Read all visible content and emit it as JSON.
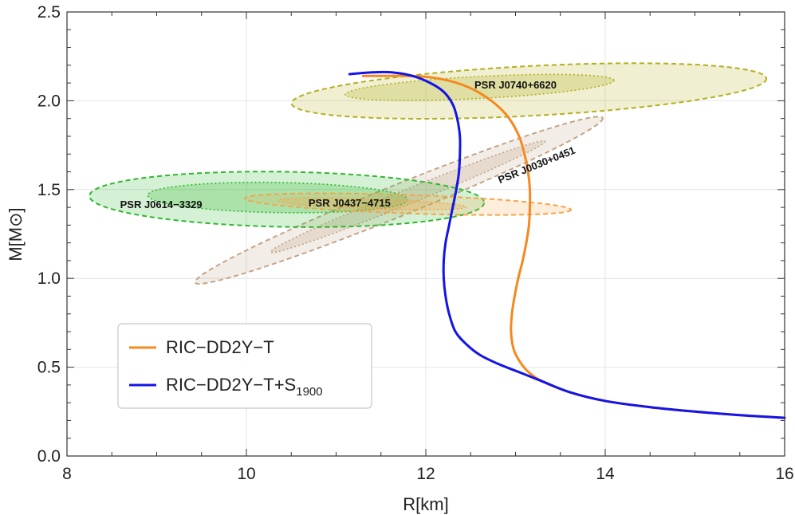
{
  "chart_data": {
    "type": "line",
    "title": "",
    "xlabel": "R[km]",
    "ylabel": "M[M⊙]",
    "xlim": [
      8,
      16
    ],
    "ylim": [
      0,
      2.5
    ],
    "x_ticks": [
      8,
      10,
      12,
      14,
      16
    ],
    "x_tick_labels": [
      "8",
      "10",
      "12",
      "14",
      "16"
    ],
    "y_ticks": [
      0.0,
      0.5,
      1.0,
      1.5,
      2.0,
      2.5
    ],
    "y_tick_labels": [
      "0.0",
      "0.5",
      "1.0",
      "1.5",
      "2.0",
      "2.5"
    ],
    "grid": true,
    "legend": {
      "placement": "bottom-left",
      "entries": [
        {
          "series": "RIC−DD2Y−T",
          "label": "RIC−DD2Y−T"
        },
        {
          "series": "RIC−DD2Y−T+S1900",
          "label_main": "RIC−DD2Y−T+S",
          "label_sub": "1900"
        }
      ]
    },
    "series": [
      {
        "name": "RIC−DD2Y−T",
        "color": "#f5881f",
        "points": [
          [
            16.0,
            0.215
          ],
          [
            15.5,
            0.23
          ],
          [
            15.0,
            0.25
          ],
          [
            14.5,
            0.275
          ],
          [
            14.0,
            0.31
          ],
          [
            13.6,
            0.36
          ],
          [
            13.3,
            0.42
          ],
          [
            13.15,
            0.47
          ],
          [
            13.05,
            0.53
          ],
          [
            12.98,
            0.6
          ],
          [
            12.95,
            0.7
          ],
          [
            12.96,
            0.8
          ],
          [
            12.99,
            0.9
          ],
          [
            13.03,
            1.0
          ],
          [
            13.08,
            1.1
          ],
          [
            13.12,
            1.2
          ],
          [
            13.15,
            1.3
          ],
          [
            13.16,
            1.4
          ],
          [
            13.16,
            1.5
          ],
          [
            13.14,
            1.6
          ],
          [
            13.1,
            1.7
          ],
          [
            13.04,
            1.8
          ],
          [
            12.93,
            1.9
          ],
          [
            12.78,
            1.98
          ],
          [
            12.58,
            2.05
          ],
          [
            12.35,
            2.1
          ],
          [
            12.08,
            2.13
          ],
          [
            11.8,
            2.14
          ],
          [
            11.55,
            2.14
          ],
          [
            11.3,
            2.14
          ]
        ]
      },
      {
        "name": "RIC−DD2Y−T+S1900",
        "color": "#1414e6",
        "points": [
          [
            16.0,
            0.215
          ],
          [
            15.5,
            0.23
          ],
          [
            15.0,
            0.25
          ],
          [
            14.5,
            0.275
          ],
          [
            14.0,
            0.31
          ],
          [
            13.6,
            0.36
          ],
          [
            13.3,
            0.42
          ],
          [
            13.05,
            0.47
          ],
          [
            12.8,
            0.52
          ],
          [
            12.6,
            0.57
          ],
          [
            12.45,
            0.63
          ],
          [
            12.33,
            0.7
          ],
          [
            12.26,
            0.8
          ],
          [
            12.22,
            0.9
          ],
          [
            12.2,
            1.0
          ],
          [
            12.2,
            1.1
          ],
          [
            12.22,
            1.2
          ],
          [
            12.26,
            1.3
          ],
          [
            12.3,
            1.4
          ],
          [
            12.34,
            1.5
          ],
          [
            12.37,
            1.6
          ],
          [
            12.38,
            1.7
          ],
          [
            12.38,
            1.8
          ],
          [
            12.35,
            1.9
          ],
          [
            12.3,
            1.98
          ],
          [
            12.2,
            2.05
          ],
          [
            12.05,
            2.1
          ],
          [
            11.85,
            2.14
          ],
          [
            11.62,
            2.16
          ],
          [
            11.4,
            2.16
          ],
          [
            11.15,
            2.15
          ]
        ]
      }
    ],
    "regions": [
      {
        "name": "PSR J0740+6620",
        "color": "#b3b01e",
        "outer": {
          "cx": 13.15,
          "cy": 2.055,
          "rx": 2.65,
          "ry": 0.14,
          "angle_deg": -3
        },
        "inner": {
          "cx": 12.6,
          "cy": 2.075,
          "rx": 1.5,
          "ry": 0.062,
          "angle_deg": -3
        },
        "label_at": [
          13.0,
          2.07
        ]
      },
      {
        "name": "PSR J0030+0451",
        "color": "#c3a588",
        "outer": {
          "cx": 11.7,
          "cy": 1.44,
          "rx": 2.45,
          "ry": 0.088,
          "angle_deg": -22
        },
        "inner": {
          "cx": 11.8,
          "cy": 1.46,
          "rx": 1.65,
          "ry": 0.042,
          "angle_deg": -22
        },
        "label_at": [
          13.25,
          1.62
        ],
        "label_angle_deg": -22
      },
      {
        "name": "PSR J0614−3329",
        "color": "#2eb82e",
        "outer": {
          "cx": 10.45,
          "cy": 1.445,
          "rx": 2.2,
          "ry": 0.155,
          "angle_deg": 1
        },
        "inner": {
          "cx": 10.35,
          "cy": 1.455,
          "rx": 1.45,
          "ry": 0.085,
          "angle_deg": 1
        },
        "label_at": [
          9.05,
          1.395
        ]
      },
      {
        "name": "PSR J0437−4715",
        "color": "#f5a54a",
        "outer": {
          "cx": 11.8,
          "cy": 1.418,
          "rx": 1.82,
          "ry": 0.052,
          "angle_deg": 2
        },
        "inner": {
          "cx": 11.4,
          "cy": 1.42,
          "rx": 1.05,
          "ry": 0.028,
          "angle_deg": 2
        },
        "label_at": [
          11.15,
          1.405
        ]
      }
    ]
  }
}
